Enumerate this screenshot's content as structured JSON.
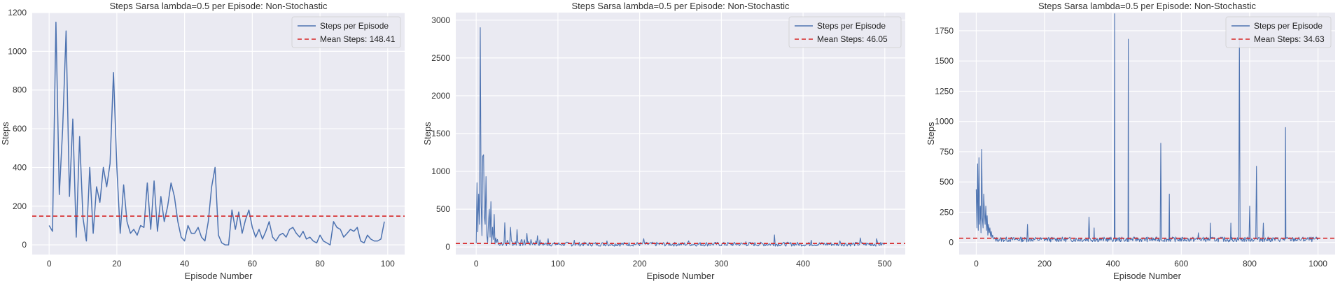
{
  "colors": {
    "series": "#4c72b0",
    "mean": "#d62728",
    "plot_bg": "#eaeaf2",
    "grid": "#ffffff"
  },
  "chart_data": [
    {
      "type": "line",
      "title": "Steps Sarsa lambda=0.5 per Episode: Non-Stochastic",
      "xlabel": "Episode Number",
      "ylabel": "Steps",
      "xlim": [
        -5,
        105
      ],
      "ylim": [
        -50,
        1200
      ],
      "xticks": [
        0,
        20,
        40,
        60,
        80,
        100
      ],
      "xtick_labels": [
        "0",
        "20",
        "40",
        "60",
        "80",
        "100"
      ],
      "yticks": [
        0,
        200,
        400,
        600,
        800,
        1000,
        1200
      ],
      "ytick_labels": [
        "0",
        "200",
        "400",
        "600",
        "800",
        "1000",
        "1200"
      ],
      "legend": "top-right",
      "mean": 148.41,
      "series": [
        {
          "name": "Steps per Episode",
          "values": [
            100,
            70,
            1150,
            260,
            600,
            1105,
            250,
            650,
            40,
            560,
            140,
            20,
            400,
            60,
            300,
            220,
            400,
            300,
            420,
            890,
            400,
            60,
            310,
            120,
            60,
            80,
            50,
            100,
            90,
            320,
            80,
            330,
            70,
            250,
            120,
            200,
            320,
            250,
            120,
            40,
            20,
            100,
            60,
            60,
            90,
            40,
            20,
            120,
            300,
            400,
            50,
            10,
            0,
            0,
            180,
            80,
            170,
            60,
            130,
            180,
            90,
            40,
            80,
            30,
            70,
            120,
            40,
            20,
            50,
            60,
            40,
            80,
            90,
            60,
            40,
            70,
            30,
            40,
            20,
            10,
            50,
            20,
            10,
            0,
            120,
            90,
            80,
            40,
            60,
            80,
            70,
            90,
            20,
            10,
            50,
            30,
            20,
            20,
            30,
            120
          ]
        },
        {
          "name": "Mean Steps: 148.41",
          "values": [
            148.41
          ]
        }
      ]
    },
    {
      "type": "line",
      "title": "Steps Sarsa lambda=0.5 per Episode: Non-Stochastic",
      "xlabel": "Episode Number",
      "ylabel": "Steps",
      "xlim": [
        -25,
        525
      ],
      "ylim": [
        -100,
        3100
      ],
      "xticks": [
        0,
        100,
        200,
        300,
        400,
        500
      ],
      "xtick_labels": [
        "0",
        "100",
        "200",
        "300",
        "400",
        "500"
      ],
      "yticks": [
        0,
        500,
        1000,
        1500,
        2000,
        2500,
        3000
      ],
      "ytick_labels": [
        "0",
        "500",
        "1000",
        "1500",
        "2000",
        "2500",
        "3000"
      ],
      "legend": "top-right",
      "mean": 46.05,
      "series": [
        {
          "name": "Steps per Episode",
          "values": [
            50,
            850,
            200,
            700,
            300,
            2900,
            600,
            150,
            1200,
            1220,
            400,
            300,
            930,
            150,
            60,
            320,
            500,
            130,
            600,
            50,
            260,
            100,
            430,
            40,
            120,
            60,
            100,
            40,
            30,
            20
          ]
        },
        {
          "name": "Mean Steps: 46.05",
          "values": [
            46.05
          ]
        }
      ]
    },
    {
      "type": "line",
      "title": "Steps Sarsa lambda=0.5 per Episode: Non-Stochastic",
      "xlabel": "Episode Number",
      "ylabel": "Steps",
      "xlim": [
        -50,
        1050
      ],
      "ylim": [
        -100,
        1900
      ],
      "xticks": [
        0,
        200,
        400,
        600,
        800,
        1000
      ],
      "xtick_labels": [
        "0",
        "200",
        "400",
        "600",
        "800",
        "1000"
      ],
      "yticks": [
        0,
        250,
        500,
        750,
        1000,
        1250,
        1500,
        1750
      ],
      "ytick_labels": [
        "0",
        "250",
        "500",
        "750",
        "1000",
        "1250",
        "1500",
        "1750"
      ],
      "legend": "top-right",
      "mean": 34.63,
      "series": [
        {
          "name": "Steps per Episode",
          "values": [
            440,
            120,
            650,
            100,
            700,
            150,
            300,
            80,
            770,
            200,
            120,
            400,
            250,
            150,
            300,
            100,
            220,
            60,
            150,
            80,
            120,
            50,
            90,
            40,
            60
          ]
        },
        {
          "name": "Mean Steps: 34.63",
          "values": [
            34.63
          ]
        }
      ]
    }
  ]
}
